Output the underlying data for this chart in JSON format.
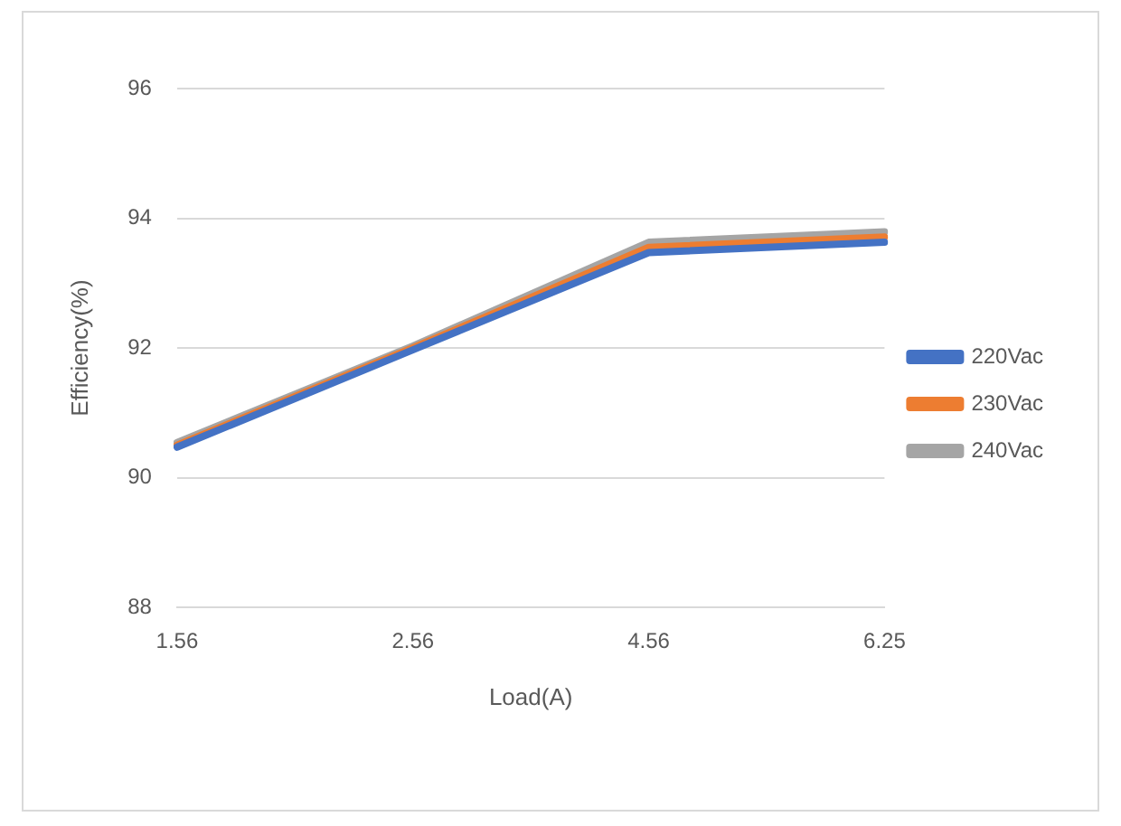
{
  "chart_data": {
    "type": "line",
    "xlabel": "Load(A)",
    "ylabel": "Efficiency(%)",
    "categories": [
      "1.56",
      "2.56",
      "4.56",
      "6.25"
    ],
    "series": [
      {
        "name": "220Vac",
        "color": "#4472c4",
        "values": [
          90.47,
          91.97,
          93.47,
          93.63
        ]
      },
      {
        "name": "230Vac",
        "color": "#ed7d31",
        "values": [
          90.5,
          92.0,
          93.55,
          93.71
        ]
      },
      {
        "name": "240Vac",
        "color": "#a5a5a5",
        "values": [
          90.54,
          92.03,
          93.63,
          93.79
        ]
      }
    ],
    "ylim": [
      88,
      96
    ],
    "yticks": [
      88,
      90,
      92,
      94,
      96
    ],
    "grid": "y",
    "legend": "right",
    "marker": "none",
    "line_style": "solid"
  }
}
